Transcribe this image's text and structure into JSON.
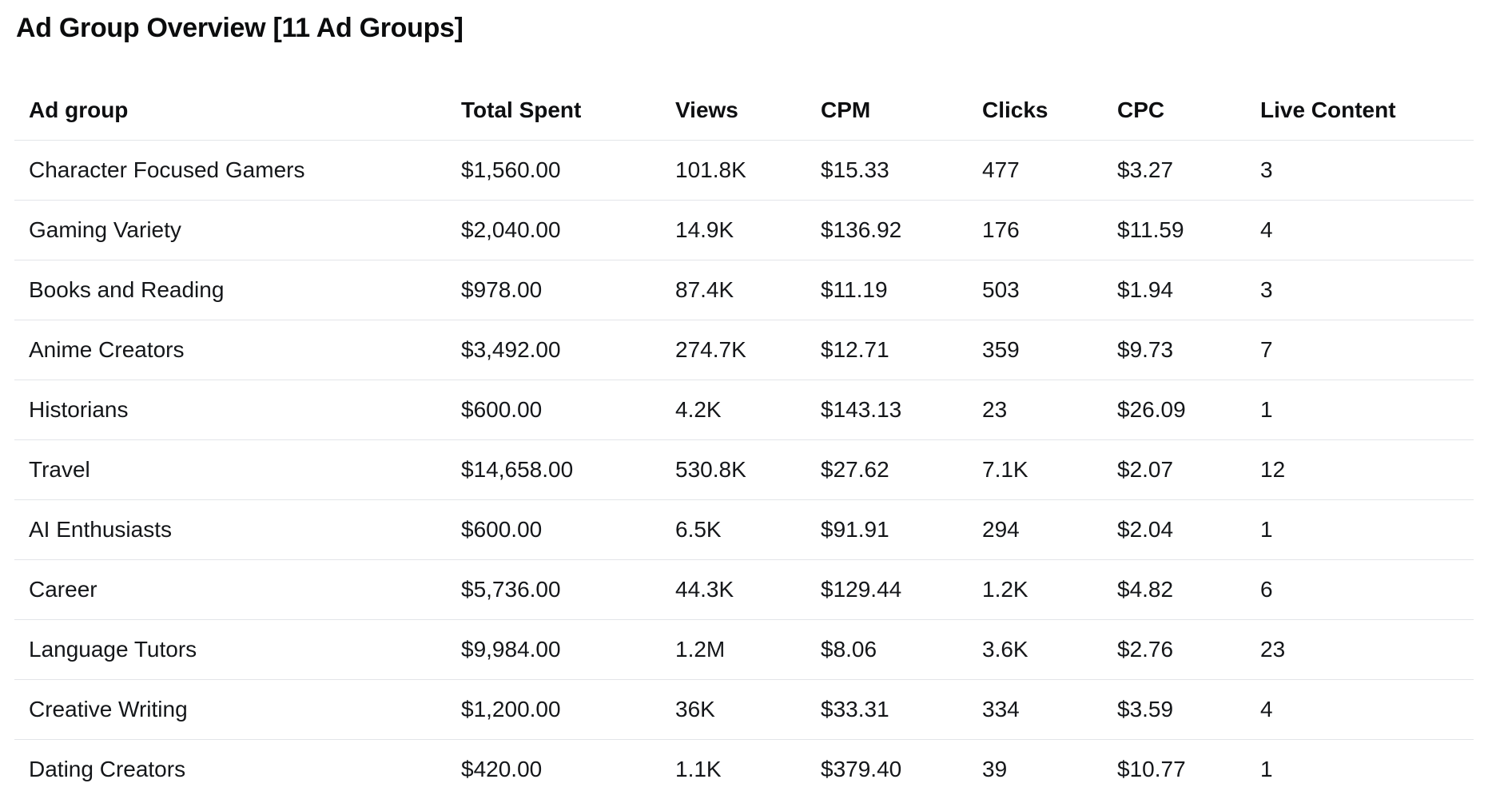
{
  "page": {
    "title": "Ad Group Overview [11 Ad Groups]"
  },
  "chart_data": {
    "type": "table",
    "title": "Ad Group Overview [11 Ad Groups]",
    "ad_group_count": 11,
    "columns": [
      "Ad group",
      "Total Spent",
      "Views",
      "CPM",
      "Clicks",
      "CPC",
      "Live Content"
    ],
    "rows": [
      [
        "Character Focused Gamers",
        "$1,560.00",
        "101.8K",
        "$15.33",
        "477",
        "$3.27",
        "3"
      ],
      [
        "Gaming Variety",
        "$2,040.00",
        "14.9K",
        "$136.92",
        "176",
        "$11.59",
        "4"
      ],
      [
        "Books and Reading",
        "$978.00",
        "87.4K",
        "$11.19",
        "503",
        "$1.94",
        "3"
      ],
      [
        "Anime Creators",
        "$3,492.00",
        "274.7K",
        "$12.71",
        "359",
        "$9.73",
        "7"
      ],
      [
        "Historians",
        "$600.00",
        "4.2K",
        "$143.13",
        "23",
        "$26.09",
        "1"
      ],
      [
        "Travel",
        "$14,658.00",
        "530.8K",
        "$27.62",
        "7.1K",
        "$2.07",
        "12"
      ],
      [
        "AI Enthusiasts",
        "$600.00",
        "6.5K",
        "$91.91",
        "294",
        "$2.04",
        "1"
      ],
      [
        "Career",
        "$5,736.00",
        "44.3K",
        "$129.44",
        "1.2K",
        "$4.82",
        "6"
      ],
      [
        "Language Tutors",
        "$9,984.00",
        "1.2M",
        "$8.06",
        "3.6K",
        "$2.76",
        "23"
      ],
      [
        "Creative Writing",
        "$1,200.00",
        "36K",
        "$33.31",
        "334",
        "$3.59",
        "4"
      ],
      [
        "Dating Creators",
        "$420.00",
        "1.1K",
        "$379.40",
        "39",
        "$10.77",
        "1"
      ]
    ],
    "colors": {
      "background": "#ffffff",
      "text": "#141619",
      "divider": "#e3e5e9"
    }
  }
}
